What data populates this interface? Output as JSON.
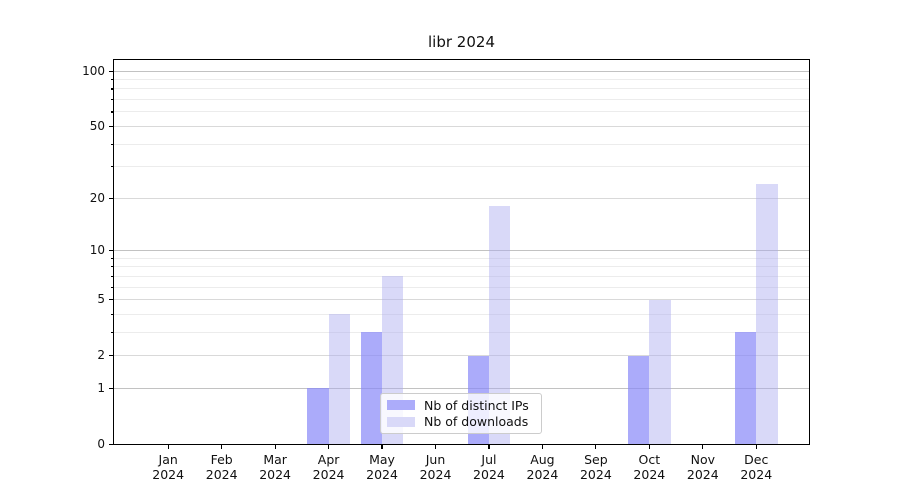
{
  "chart_data": {
    "type": "bar",
    "title": "libr 2024",
    "categories": [
      "Jan 2024",
      "Feb 2024",
      "Mar 2024",
      "Apr 2024",
      "May 2024",
      "Jun 2024",
      "Jul 2024",
      "Aug 2024",
      "Sep 2024",
      "Oct 2024",
      "Nov 2024",
      "Dec 2024"
    ],
    "series": [
      {
        "name": "Nb of distinct IPs",
        "values": [
          0,
          0,
          0,
          1,
          3,
          0,
          2,
          0,
          0,
          2,
          0,
          3
        ],
        "fill": "rgba(136,136,248,0.70)",
        "swatch": "#acacfa"
      },
      {
        "name": "Nb of downloads",
        "values": [
          0,
          0,
          0,
          4,
          7,
          0,
          18,
          0,
          0,
          5,
          0,
          24
        ],
        "fill": "rgba(170,170,240,0.45)",
        "swatch": "#d9d9f8"
      }
    ],
    "y_scale": "log1p",
    "ylim": [
      0,
      117
    ],
    "y_ticks_labeled": [
      0,
      1,
      2,
      5,
      10,
      20,
      50,
      100
    ],
    "y_ticks_decade": [
      1,
      10,
      100
    ],
    "y_ticks_minor": [
      3,
      4,
      6,
      7,
      8,
      9,
      30,
      40,
      60,
      70,
      80,
      90
    ],
    "xlabel": "",
    "ylabel": "",
    "grid": "on",
    "legend_position": "lower center inside"
  }
}
